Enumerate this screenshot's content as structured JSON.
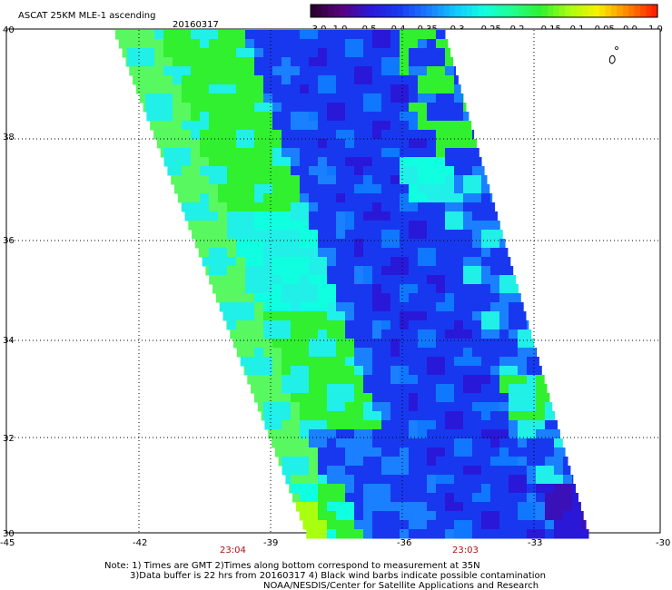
{
  "header": {
    "title": "ASCAT 25KM MLE-1 ascending",
    "date": "20160317"
  },
  "colorbar": {
    "labels": [
      "-3.0",
      "-1.0",
      "-0.5",
      "-0.4",
      "-0.35",
      "-0.3",
      "-0.25",
      "-0.2",
      "-0.15",
      "-0.1",
      "-0.05",
      "0.0",
      "1.0"
    ],
    "colors": [
      "#2b0030",
      "#5a0080",
      "#2a18d8",
      "#1838f0",
      "#1a78ff",
      "#10c8ff",
      "#10ffe0",
      "#20ff90",
      "#30f030",
      "#a8ff10",
      "#f8f000",
      "#ff8a00",
      "#ff2000"
    ]
  },
  "axes": {
    "y_labels": [
      "40",
      "38",
      "36",
      "34",
      "32",
      "30"
    ],
    "x_labels": [
      "-45",
      "-42",
      "-39",
      "-36",
      "-33",
      "-30"
    ]
  },
  "times": [
    "23:04",
    "23:03"
  ],
  "notes": [
    "Note: 1) Times are GMT 2)Times along bottom correspond to measurement at 35N",
    "3)Data buffer is 22 hrs from 20160317 4) Black wind barbs indicate possible contamination",
    "NOAA/NESDIS/Center for Satellite Applications and Research"
  ]
}
